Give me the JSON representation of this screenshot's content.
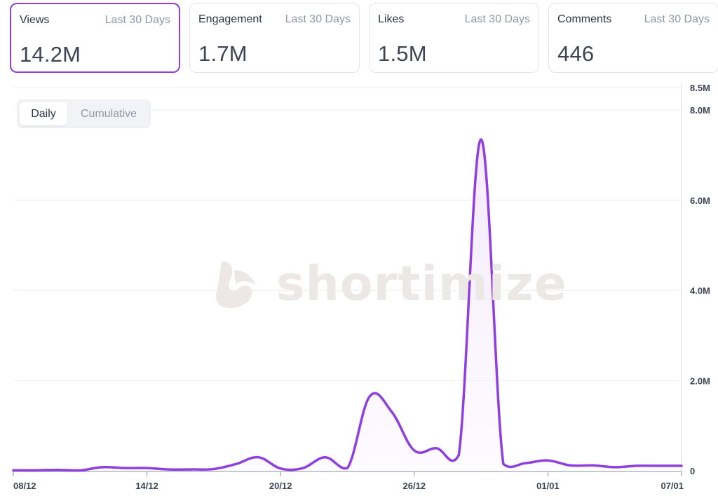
{
  "cards": [
    {
      "title": "Views",
      "period": "Last 30 Days",
      "value": "14.2M",
      "active": true
    },
    {
      "title": "Engagement",
      "period": "Last 30 Days",
      "value": "1.7M",
      "active": false
    },
    {
      "title": "Likes",
      "period": "Last 30 Days",
      "value": "1.5M",
      "active": false
    },
    {
      "title": "Comments",
      "period": "Last 30 Days",
      "value": "446",
      "active": false
    }
  ],
  "toggle": {
    "daily": "Daily",
    "cumulative": "Cumulative",
    "selected": "Daily"
  },
  "watermark": {
    "text": "shortimize",
    "logo": "shortimize-logo-icon"
  },
  "colors": {
    "accent": "#8f3fe0",
    "line": "#8f3fe0",
    "fill": "#f3e8fd",
    "grid": "#eceef2"
  },
  "chart_data": {
    "type": "area",
    "title": "",
    "xlabel": "",
    "ylabel": "",
    "ylim": [
      0,
      8500000
    ],
    "y_ticks": [
      {
        "value": 0,
        "label": "0"
      },
      {
        "value": 2000000,
        "label": "2.0M"
      },
      {
        "value": 4000000,
        "label": "4.0M"
      },
      {
        "value": 6000000,
        "label": "6.0M"
      },
      {
        "value": 8000000,
        "label": "8.0M"
      },
      {
        "value": 8500000,
        "label": "8.5M"
      }
    ],
    "x_ticks": [
      "08/12",
      "14/12",
      "20/12",
      "26/12",
      "01/01",
      "07/01"
    ],
    "grid": true,
    "y_axis_position": "right",
    "series": [
      {
        "x": [
          "08/12",
          "09/12",
          "10/12",
          "11/12",
          "12/12",
          "13/12",
          "14/12",
          "15/12",
          "16/12",
          "17/12",
          "18/12",
          "19/12",
          "20/12",
          "21/12",
          "22/12",
          "23/12",
          "24/12",
          "25/12",
          "26/12",
          "27/12",
          "28/12",
          "29/12",
          "30/12",
          "31/12",
          "01/01",
          "02/01",
          "03/01",
          "04/01",
          "05/01",
          "06/01",
          "07/01"
        ],
        "values": [
          10000,
          10000,
          20000,
          10000,
          80000,
          60000,
          60000,
          30000,
          30000,
          40000,
          150000,
          300000,
          50000,
          60000,
          300000,
          60000,
          1650000,
          1300000,
          450000,
          500000,
          350000,
          7350000,
          150000,
          170000,
          230000,
          120000,
          120000,
          80000,
          110000,
          110000,
          110000
        ]
      }
    ]
  }
}
